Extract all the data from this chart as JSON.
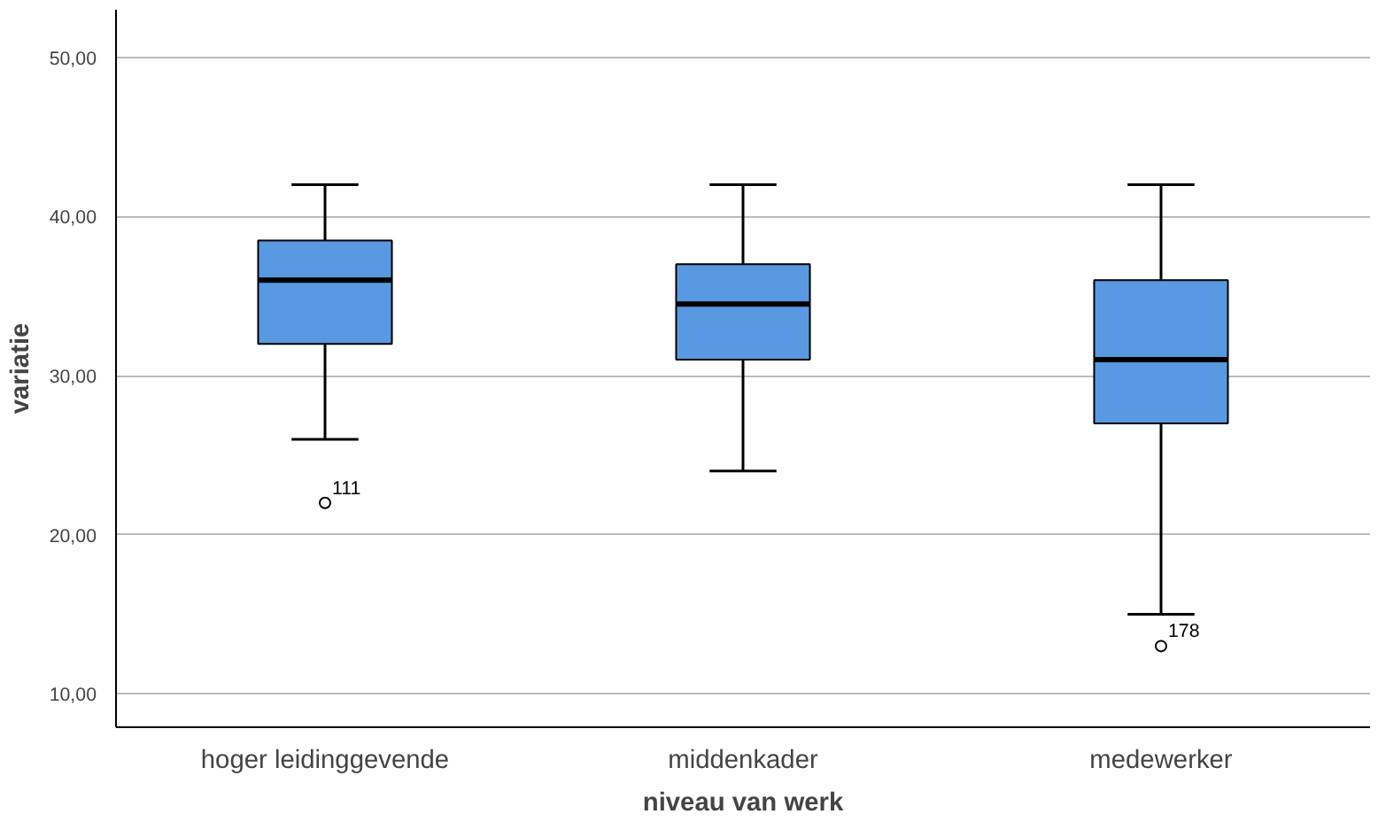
{
  "chart_data": {
    "type": "box",
    "xlabel": "niveau van werk",
    "ylabel": "variatie",
    "categories": [
      "hoger leidinggevende",
      "middenkader",
      "medewerker"
    ],
    "color": "#5899e2",
    "boxes": [
      {
        "low": 26,
        "q1": 32,
        "median": 36,
        "q3": 38.5,
        "high": 42,
        "outliers": [
          22
        ]
      },
      {
        "low": 24,
        "q1": 31,
        "median": 34.5,
        "q3": 37,
        "high": 42
      },
      {
        "low": 15,
        "q1": 27,
        "median": 31,
        "q3": 36,
        "high": 42,
        "outliers": [
          13
        ]
      }
    ],
    "ylim": [
      7.9,
      53
    ],
    "yticks": [
      {
        "value": 10,
        "label": "10,00"
      },
      {
        "value": 20,
        "label": "20,00"
      },
      {
        "value": 30,
        "label": "30,00"
      },
      {
        "value": 40,
        "label": "40,00"
      },
      {
        "value": 50,
        "label": "50,00"
      }
    ],
    "grid": "y",
    "annotations": [
      "111",
      "178"
    ]
  }
}
